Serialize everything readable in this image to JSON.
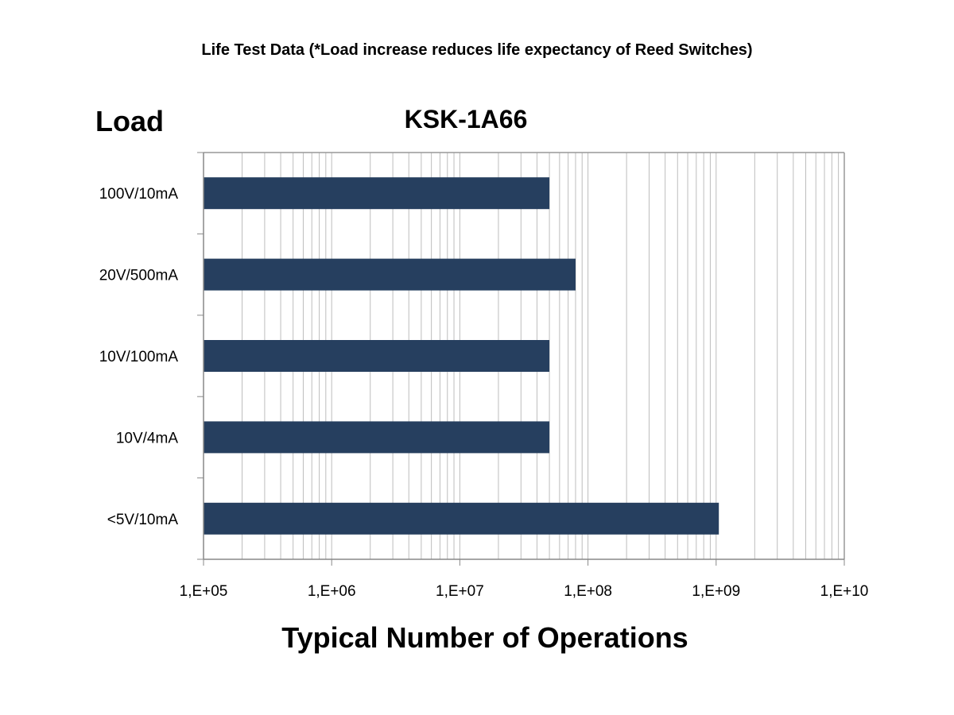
{
  "chart_data": {
    "type": "bar",
    "orientation": "horizontal",
    "title": "KSK-1A66",
    "subtitle": "Life Test Data (*Load increase reduces life expectancy of Reed Switches)",
    "xlabel": "Typical Number of Operations",
    "ylabel": "Load",
    "x_scale": "log",
    "xlim": [
      100000,
      10000000000
    ],
    "x_tick_labels": [
      "1,E+05",
      "1,E+06",
      "1,E+07",
      "1,E+08",
      "1,E+09",
      "1,E+10"
    ],
    "categories": [
      "100V/10mA",
      "20V/500mA",
      "10V/100mA",
      "10V/4mA",
      "<5V/10mA"
    ],
    "values": [
      50000000,
      80000000,
      50000000,
      50000000,
      1050000000
    ],
    "grid": "vertical minor log gridlines",
    "bar_color": "#263f5f",
    "grid_color": "#bdbdbd"
  }
}
